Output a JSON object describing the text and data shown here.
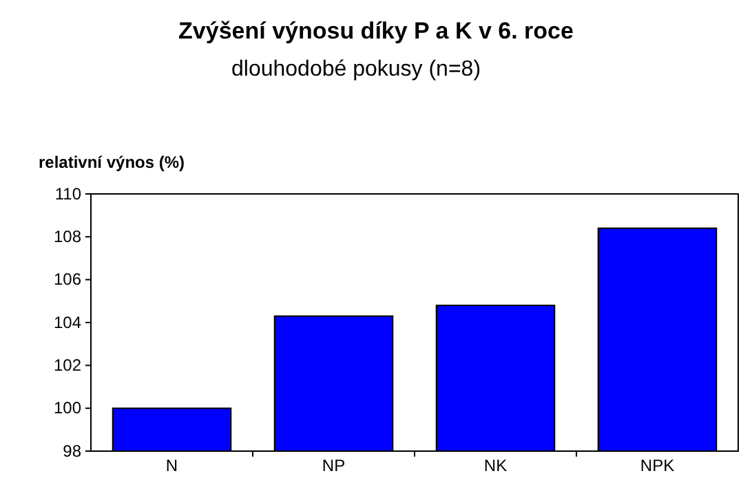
{
  "chart_data": {
    "type": "bar",
    "title": "Zvýšení výnosu díky P a K v 6. roce",
    "subtitle": "dlouhodobé pokusy (n=8)",
    "ylabel": "relativní výnos (%)",
    "categories": [
      "N",
      "NP",
      "NK",
      "NPK"
    ],
    "values": [
      100.0,
      104.3,
      104.8,
      108.4
    ],
    "color": "#0000ff",
    "ylim": [
      98,
      110
    ],
    "yticks": [
      98,
      100,
      102,
      104,
      106,
      108,
      110
    ],
    "grid": false
  }
}
